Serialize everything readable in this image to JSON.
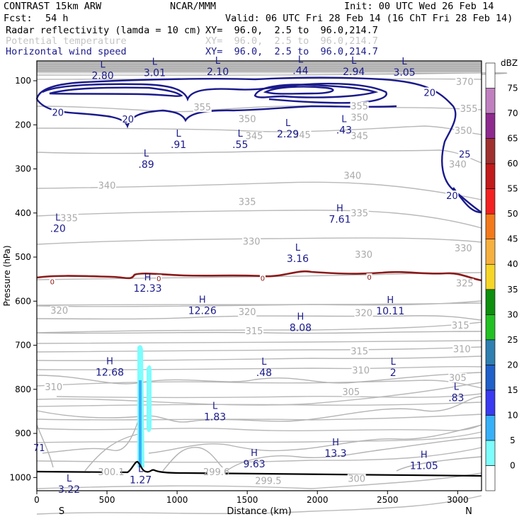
{
  "header": {
    "model": "CONTRAST 15km ARW",
    "org": "NCAR/MMM",
    "init": "Init: 00 UTC Wed 26 Feb 14",
    "fcst_label": "Fcst:",
    "fcst_value": "54 h",
    "valid": "Valid: 06 UTC Fri 28 Feb 14 (16 ChT Fri 28 Feb 14)",
    "fields": [
      {
        "name": "Radar reflectivity (lamda = 10 cm)",
        "xy": "XY=  96.0,  2.5 to  96.0,214.7",
        "color": "#000000"
      },
      {
        "name": "Potential temperature",
        "xy": "XY=  96.0,  2.5 to  96.0,214.7",
        "color": "#c4c4c4"
      },
      {
        "name": "Horizontal wind speed",
        "xy": "XY=  96.0,  2.5 to  96.0,214.7",
        "color": "#1a1a8c"
      }
    ]
  },
  "chart_data": {
    "type": "cross-section",
    "xlabel": "Distance (km)",
    "ylabel": "Pressure (hPa)",
    "xlim": [
      0,
      3170
    ],
    "ylim": [
      1030,
      55
    ],
    "x_ticks": [
      0,
      500,
      1000,
      1500,
      2000,
      2500,
      3000
    ],
    "y_ticks": [
      100,
      200,
      300,
      400,
      500,
      600,
      700,
      800,
      900,
      1000
    ],
    "end_labels": {
      "left": "S",
      "right": "N"
    },
    "colorbar": {
      "unit": "dBZ",
      "levels": [
        0,
        5,
        10,
        15,
        20,
        25,
        30,
        35,
        40,
        45,
        50,
        55,
        60,
        65,
        70,
        75
      ],
      "colors": [
        "#ffffff",
        "#7dfdfd",
        "#38b0f8",
        "#3a3af0",
        "#2060c8",
        "#2f7fb0",
        "#23c023",
        "#0e8f0e",
        "#f7d528",
        "#f6b040",
        "#f37a1c",
        "#f22222",
        "#c21b1b",
        "#a03030",
        "#8e2a8e",
        "#c080c0",
        "#ffffff"
      ]
    },
    "theta_contour_labels": [
      {
        "text": "370",
        "x": 3050,
        "p": 105
      },
      {
        "text": "355",
        "x": 1180,
        "p": 163
      },
      {
        "text": "355",
        "x": 2300,
        "p": 160
      },
      {
        "text": "355",
        "x": 3080,
        "p": 166
      },
      {
        "text": "350",
        "x": 1500,
        "p": 189
      },
      {
        "text": "350",
        "x": 2300,
        "p": 186
      },
      {
        "text": "350",
        "x": 3040,
        "p": 216
      },
      {
        "text": "345",
        "x": 1550,
        "p": 228
      },
      {
        "text": "345",
        "x": 1890,
        "p": 225
      },
      {
        "text": "345",
        "x": 2300,
        "p": 228
      },
      {
        "text": "340",
        "x": 2250,
        "p": 318
      },
      {
        "text": "340",
        "x": 3000,
        "p": 292
      },
      {
        "text": "340",
        "x": 500,
        "p": 340
      },
      {
        "text": "335",
        "x": 1500,
        "p": 377
      },
      {
        "text": "335",
        "x": 2300,
        "p": 403
      },
      {
        "text": "335",
        "x": 230,
        "p": 414
      },
      {
        "text": "330",
        "x": 1530,
        "p": 467
      },
      {
        "text": "330",
        "x": 2330,
        "p": 497
      },
      {
        "text": "330",
        "x": 3040,
        "p": 482
      },
      {
        "text": "325",
        "x": 3050,
        "p": 562
      },
      {
        "text": "320",
        "x": 160,
        "p": 624
      },
      {
        "text": "320",
        "x": 1500,
        "p": 627
      },
      {
        "text": "320",
        "x": 2330,
        "p": 629
      },
      {
        "text": "315",
        "x": 1550,
        "p": 670
      },
      {
        "text": "315",
        "x": 2300,
        "p": 716
      },
      {
        "text": "315",
        "x": 3020,
        "p": 657
      },
      {
        "text": "310",
        "x": 2310,
        "p": 759
      },
      {
        "text": "310",
        "x": 3030,
        "p": 711
      },
      {
        "text": "310",
        "x": 120,
        "p": 797
      },
      {
        "text": "305",
        "x": 2240,
        "p": 808
      },
      {
        "text": "305",
        "x": 3000,
        "p": 776
      },
      {
        "text": "300.1",
        "x": 530,
        "p": 990
      },
      {
        "text": "299.6",
        "x": 1280,
        "p": 990
      },
      {
        "text": "299.5",
        "x": 1650,
        "p": 1010
      },
      {
        "text": "300",
        "x": 2280,
        "p": 1005
      }
    ],
    "wind_contour_labels": [
      {
        "text": "20",
        "x": 150,
        "p": 173
      },
      {
        "text": "20",
        "x": 650,
        "p": 188
      },
      {
        "text": "20",
        "x": 2800,
        "p": 128
      },
      {
        "text": "25",
        "x": 3050,
        "p": 268
      },
      {
        "text": "20",
        "x": 2960,
        "p": 362
      }
    ],
    "freezing_level_labels": [
      {
        "text": "0",
        "x": 110,
        "p": 555
      },
      {
        "text": "0",
        "x": 870,
        "p": 548
      },
      {
        "text": "0",
        "x": 1610,
        "p": 547
      },
      {
        "text": "0",
        "x": 2370,
        "p": 545
      }
    ],
    "extrema": [
      {
        "type": "L",
        "value": "2.80",
        "x": 470,
        "p": 83,
        "field": "wind"
      },
      {
        "type": "L",
        "value": "3.01",
        "x": 840,
        "p": 77,
        "field": "wind"
      },
      {
        "type": "L",
        "value": "2.10",
        "x": 1290,
        "p": 74,
        "field": "wind"
      },
      {
        "type": "L",
        "value": ".44",
        "x": 1880,
        "p": 72,
        "field": "wind"
      },
      {
        "type": "L",
        "value": "2.94",
        "x": 2260,
        "p": 74,
        "field": "wind"
      },
      {
        "type": "L",
        "value": "3.05",
        "x": 2620,
        "p": 76,
        "field": "wind"
      },
      {
        "type": "L",
        "value": ".91",
        "x": 1010,
        "p": 240,
        "field": "wind"
      },
      {
        "type": "L",
        "value": ".55",
        "x": 1450,
        "p": 240,
        "field": "wind"
      },
      {
        "type": "L",
        "value": "2.29",
        "x": 1790,
        "p": 216,
        "field": "wind"
      },
      {
        "type": "L",
        "value": ".43",
        "x": 2190,
        "p": 207,
        "field": "wind"
      },
      {
        "type": "L",
        "value": ".89",
        "x": 780,
        "p": 285,
        "field": "wind"
      },
      {
        "type": "H",
        "value": "7.61",
        "x": 2160,
        "p": 409,
        "field": "wind"
      },
      {
        "type": "L",
        "value": ".20",
        "x": 150,
        "p": 430,
        "field": "wind"
      },
      {
        "type": "L",
        "value": "3.16",
        "x": 1860,
        "p": 498,
        "field": "wind"
      },
      {
        "type": "H",
        "value": "12.33",
        "x": 790,
        "p": 566,
        "field": "wind"
      },
      {
        "type": "H",
        "value": "12.26",
        "x": 1180,
        "p": 616,
        "field": "wind"
      },
      {
        "type": "H",
        "value": "10.11",
        "x": 2520,
        "p": 617,
        "field": "wind"
      },
      {
        "type": "H",
        "value": "8.08",
        "x": 1880,
        "p": 655,
        "field": "wind"
      },
      {
        "type": "H",
        "value": "12.68",
        "x": 520,
        "p": 756,
        "field": "wind"
      },
      {
        "type": "L",
        "value": ".48",
        "x": 1620,
        "p": 757,
        "field": "wind"
      },
      {
        "type": "L",
        "value": "2",
        "x": 2540,
        "p": 757,
        "field": "wind"
      },
      {
        "type": "L",
        "value": ".83",
        "x": 2990,
        "p": 814,
        "field": "wind"
      },
      {
        "type": "L",
        "value": "1.83",
        "x": 1270,
        "p": 857,
        "field": "wind"
      },
      {
        "type": "H",
        "value": "13.3",
        "x": 2130,
        "p": 940,
        "field": "wind"
      },
      {
        "type": "H",
        "value": "9.63",
        "x": 1550,
        "p": 964,
        "field": "wind"
      },
      {
        "type": "H",
        "value": "11.05",
        "x": 2760,
        "p": 968,
        "field": "wind"
      },
      {
        "type": "L",
        "value": "1.27",
        "x": 740,
        "p": 1000,
        "field": "wind"
      },
      {
        "type": "L",
        "value": "3.22",
        "x": 230,
        "p": 1022,
        "field": "wind"
      }
    ],
    "edge_values": [
      {
        "text": "71",
        "x": 25,
        "p": 932
      }
    ]
  }
}
